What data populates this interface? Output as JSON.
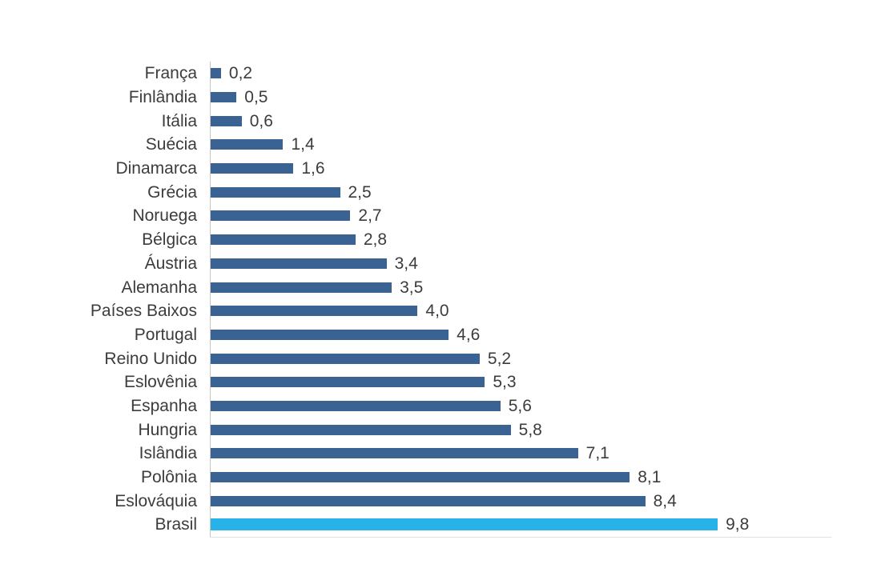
{
  "chart_data": {
    "type": "bar",
    "orientation": "horizontal",
    "title": "",
    "xlabel": "",
    "ylabel": "",
    "xlim": [
      0,
      10
    ],
    "grid": false,
    "legend": false,
    "decimal_separator": ",",
    "categories": [
      "França",
      "Finlândia",
      "Itália",
      "Suécia",
      "Dinamarca",
      "Grécia",
      "Noruega",
      "Bélgica",
      "Áustria",
      "Alemanha",
      "Países Baixos",
      "Portugal",
      "Reino Unido",
      "Eslovênia",
      "Espanha",
      "Hungria",
      "Islândia",
      "Polônia",
      "Eslováquia",
      "Brasil"
    ],
    "values": [
      0.2,
      0.5,
      0.6,
      1.4,
      1.6,
      2.5,
      2.7,
      2.8,
      3.4,
      3.5,
      4.0,
      4.6,
      5.2,
      5.3,
      5.6,
      5.8,
      7.1,
      8.1,
      8.4,
      9.8
    ],
    "value_labels": [
      "0,2",
      "0,5",
      "0,6",
      "1,4",
      "1,6",
      "2,5",
      "2,7",
      "2,8",
      "3,4",
      "3,5",
      "4,0",
      "4,6",
      "5,2",
      "5,3",
      "5,6",
      "5,8",
      "7,1",
      "8,1",
      "8,4",
      "9,8"
    ],
    "highlight_category": "Brasil",
    "colors": {
      "bar": "#3a6394",
      "highlight_bar": "#27b2e8",
      "axis_line": "#c6c6c6",
      "baseline": "#e0e0e0",
      "label_text": "#3c3c3c",
      "value_text": "#3c3c3c",
      "background": "#ffffff"
    }
  }
}
